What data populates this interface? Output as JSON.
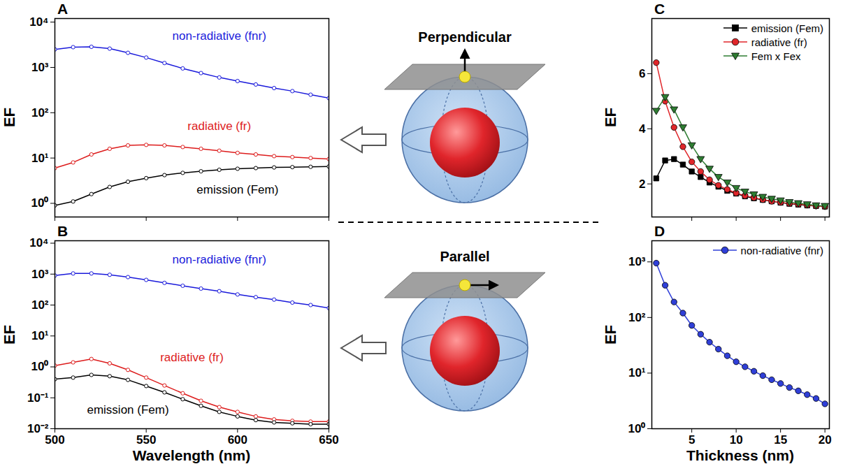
{
  "chart_data": [
    {
      "type": "line",
      "title": "A",
      "y_label": "EF",
      "log": "y",
      "tick_labels": "y",
      "x": [
        500,
        510,
        520,
        530,
        540,
        550,
        560,
        570,
        580,
        590,
        600,
        610,
        620,
        630,
        640,
        650
      ],
      "xlim": [
        500,
        650
      ],
      "xticks": [
        500,
        550,
        600,
        650
      ],
      "ylim": [
        0.5,
        12000
      ],
      "yticks": [
        {
          "value": 1,
          "label": "10⁰"
        },
        {
          "value": 10,
          "label": "10¹"
        },
        {
          "value": 100,
          "label": "10²"
        },
        {
          "value": 1000,
          "label": "10³"
        },
        {
          "value": 10000,
          "label": "10⁴"
        }
      ],
      "series": [
        {
          "name": "non-radiative (fnr)",
          "color": "#1a1adb",
          "marker": "open-circle",
          "label": {
            "x": 590,
            "y": 5000
          },
          "values": [
            2500,
            2800,
            2850,
            2600,
            2100,
            1650,
            1250,
            950,
            750,
            600,
            500,
            420,
            350,
            300,
            250,
            210
          ]
        },
        {
          "name": "radiative (fr)",
          "color": "#dd1c1c",
          "marker": "open-circle",
          "label": {
            "x": 590,
            "y": 50
          },
          "values": [
            6,
            8,
            12,
            16,
            19,
            19.5,
            19,
            17.5,
            16,
            14.5,
            13,
            12,
            11,
            10.5,
            10,
            9.5
          ]
        },
        {
          "name": "emission (Fem)",
          "color": "#000000",
          "marker": "open-circle",
          "label": {
            "x": 600,
            "y": 2
          },
          "values": [
            0.9,
            1.1,
            1.6,
            2.3,
            3.0,
            3.6,
            4.2,
            4.7,
            5.1,
            5.5,
            5.8,
            6.0,
            6.2,
            6.3,
            6.4,
            6.5
          ]
        }
      ]
    },
    {
      "type": "line",
      "title": "B",
      "y_label": "EF",
      "x_label": "Wavelength (nm)",
      "log": "y",
      "x": [
        500,
        510,
        520,
        530,
        540,
        550,
        560,
        570,
        580,
        590,
        600,
        610,
        620,
        630,
        640,
        650
      ],
      "xlim": [
        500,
        650
      ],
      "xticks": [
        500,
        550,
        600,
        650
      ],
      "ylim": [
        0.01,
        12000
      ],
      "yticks": [
        {
          "value": 0.01,
          "label": "10⁻²"
        },
        {
          "value": 0.1,
          "label": "10⁻¹"
        },
        {
          "value": 1,
          "label": "10⁰"
        },
        {
          "value": 10,
          "label": "10¹"
        },
        {
          "value": 100,
          "label": "10²"
        },
        {
          "value": 1000,
          "label": "10³"
        },
        {
          "value": 10000,
          "label": "10⁴"
        }
      ],
      "series": [
        {
          "name": "non-radiative (fnr)",
          "color": "#1a1adb",
          "marker": "open-circle",
          "label": {
            "x": 590,
            "y": 3000
          },
          "values": [
            900,
            1050,
            1050,
            950,
            800,
            650,
            520,
            420,
            340,
            280,
            220,
            180,
            150,
            120,
            100,
            80
          ]
        },
        {
          "name": "radiative (fr)",
          "color": "#dd1c1c",
          "marker": "open-circle",
          "label": {
            "x": 575,
            "y": 2
          },
          "values": [
            1.1,
            1.4,
            1.8,
            1.3,
            0.8,
            0.45,
            0.25,
            0.14,
            0.08,
            0.05,
            0.035,
            0.025,
            0.02,
            0.018,
            0.017,
            0.017
          ]
        },
        {
          "name": "emission (Fem)",
          "color": "#000000",
          "marker": "open-circle",
          "label": {
            "x": 540,
            "y": 0.04
          },
          "values": [
            0.4,
            0.45,
            0.55,
            0.5,
            0.38,
            0.24,
            0.15,
            0.09,
            0.055,
            0.035,
            0.025,
            0.019,
            0.016,
            0.015,
            0.014,
            0.014
          ]
        }
      ]
    },
    {
      "type": "line",
      "title": "C",
      "y_label": "EF",
      "tick_labels": "y",
      "legend": "top-right",
      "x": [
        1,
        2,
        3,
        4,
        5,
        6,
        7,
        8,
        9,
        10,
        11,
        12,
        13,
        14,
        15,
        16,
        17,
        18,
        19,
        20
      ],
      "xlim": [
        0.5,
        20.5
      ],
      "xticks": [
        5,
        10,
        15,
        20
      ],
      "ylim": [
        0.8,
        8
      ],
      "yticks": [
        2,
        4,
        6
      ],
      "series": [
        {
          "name": "emission (Fem)",
          "color": "#000000",
          "marker": "square",
          "values": [
            2.2,
            2.85,
            2.9,
            2.7,
            2.45,
            2.25,
            2.05,
            1.9,
            1.75,
            1.65,
            1.55,
            1.48,
            1.42,
            1.37,
            1.32,
            1.28,
            1.25,
            1.22,
            1.2,
            1.18
          ]
        },
        {
          "name": "radiative (fr)",
          "color": "#e0262a",
          "marker": "circle",
          "values": [
            6.4,
            5.0,
            4.05,
            3.35,
            2.8,
            2.45,
            2.15,
            1.95,
            1.8,
            1.67,
            1.57,
            1.5,
            1.43,
            1.37,
            1.33,
            1.29,
            1.26,
            1.23,
            1.2,
            1.18
          ]
        },
        {
          "name": "Fem x Fex",
          "color": "#2e7d32",
          "marker": "triangle-down",
          "values": [
            4.65,
            5.15,
            4.7,
            4.05,
            3.4,
            2.9,
            2.55,
            2.25,
            2.05,
            1.85,
            1.72,
            1.62,
            1.53,
            1.46,
            1.4,
            1.34,
            1.3,
            1.26,
            1.22,
            1.2
          ]
        }
      ]
    },
    {
      "type": "line",
      "title": "D",
      "y_label": "EF",
      "x_label": "Thickness (nm)",
      "log": "y",
      "legend": "top-right",
      "x": [
        1,
        2,
        3,
        4,
        5,
        6,
        7,
        8,
        9,
        10,
        11,
        12,
        13,
        14,
        15,
        16,
        17,
        18,
        19,
        20
      ],
      "xlim": [
        0.5,
        20.5
      ],
      "xticks": [
        5,
        10,
        15,
        20
      ],
      "ylim": [
        1,
        2400
      ],
      "yticks": [
        {
          "value": 1,
          "label": "10⁰"
        },
        {
          "value": 10,
          "label": "10¹"
        },
        {
          "value": 100,
          "label": "10²"
        },
        {
          "value": 1000,
          "label": "10³"
        }
      ],
      "series": [
        {
          "name": "non-radiative (fnr)",
          "color": "#2f3fd8",
          "marker": "circle",
          "values": [
            950,
            380,
            190,
            120,
            72,
            50,
            36,
            27,
            20.5,
            16,
            13,
            10.8,
            9,
            7.6,
            6.5,
            5.5,
            4.8,
            4.1,
            3.5,
            2.8
          ]
        }
      ]
    }
  ],
  "diagrams": [
    {
      "label": "Perpendicular"
    },
    {
      "label": "Parallel"
    }
  ]
}
